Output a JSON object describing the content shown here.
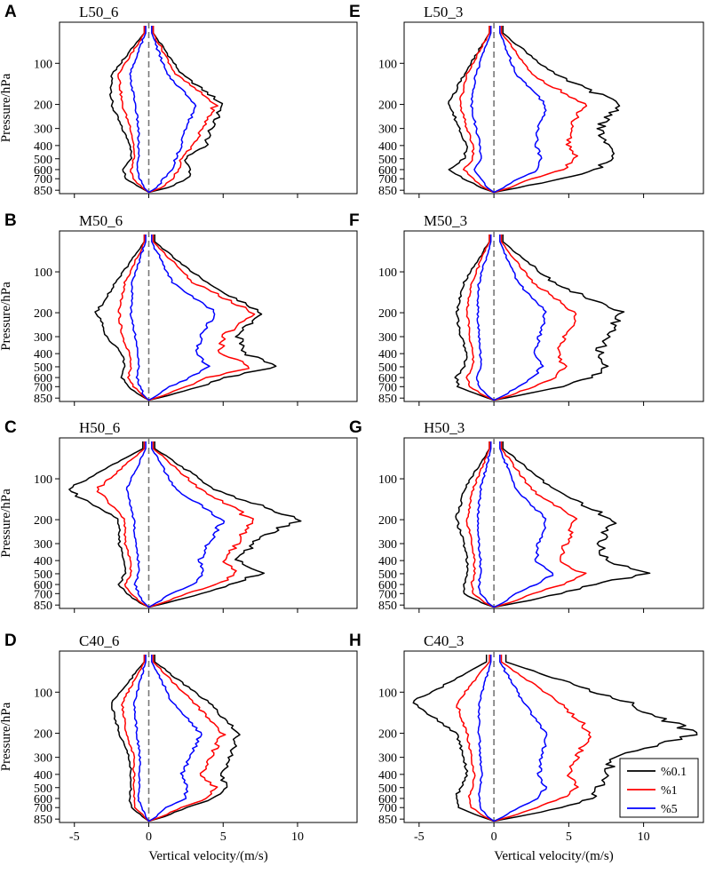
{
  "chart_data": {
    "type": "line",
    "xlabel": "Vertical velocity/(m/s)",
    "ylabel": "Pressure/hPa",
    "xlim": [
      -6,
      14
    ],
    "ylim": [
      900,
      50
    ],
    "xticks": [
      -5,
      0,
      5,
      10
    ],
    "xtick_labels": [
      "-5",
      "0",
      "5",
      "10"
    ],
    "yticks": [
      100,
      200,
      300,
      400,
      500,
      600,
      700,
      850
    ],
    "ytick_labels": [
      "100",
      "200",
      "300",
      "400",
      "500",
      "600",
      "700",
      "850"
    ],
    "zero_line": 0,
    "legend": {
      "placement": "lower-right of panel H",
      "entries": [
        {
          "label": "%0.1",
          "color": "#000000"
        },
        {
          "label": "%1",
          "color": "#ff0000"
        },
        {
          "label": "%5",
          "color": "#0000ff"
        }
      ]
    },
    "panels": [
      {
        "id": "A",
        "label": "A",
        "title": "L50_6",
        "series": [
          {
            "name": "%0.1",
            "color": "#000000",
            "min": [
              -0.3,
              -2.5,
              -2.5,
              -1.8,
              -1.2,
              -1.2,
              -1.7,
              -1.5,
              -0.5,
              0
            ],
            "max": [
              0.3,
              2.2,
              5.0,
              4.2,
              3.8,
              2.4,
              2.8,
              2.6,
              1.2,
              0
            ]
          },
          {
            "name": "%1",
            "color": "#ff0000",
            "min": [
              -0.3,
              -2.0,
              -1.8,
              -1.2,
              -1.0,
              -1.0,
              -1.2,
              -1.1,
              -0.4,
              0
            ],
            "max": [
              0.3,
              1.8,
              4.5,
              3.6,
              3.0,
              2.2,
              2.0,
              1.6,
              0.8,
              0
            ]
          },
          {
            "name": "%5",
            "color": "#0000ff",
            "min": [
              -0.2,
              -1.3,
              -0.9,
              -0.7,
              -0.7,
              -0.7,
              -0.8,
              -0.6,
              -0.3,
              0
            ],
            "max": [
              0.2,
              1.2,
              3.2,
              2.5,
              2.2,
              1.8,
              1.6,
              1.0,
              0.5,
              0
            ]
          }
        ]
      },
      {
        "id": "E",
        "label": "E",
        "title": "L50_3",
        "series": [
          {
            "name": "%0.1",
            "color": "#000000",
            "min": [
              -0.3,
              -2.0,
              -3.0,
              -2.3,
              -1.8,
              -2.0,
              -3.0,
              -2.0,
              -0.8,
              0
            ],
            "max": [
              0.6,
              4.0,
              8.5,
              7.0,
              7.5,
              8.0,
              6.8,
              4.5,
              1.5,
              0
            ]
          },
          {
            "name": "%1",
            "color": "#ff0000",
            "min": [
              -0.3,
              -1.8,
              -2.3,
              -1.8,
              -1.4,
              -1.4,
              -2.0,
              -1.4,
              -0.6,
              0
            ],
            "max": [
              0.5,
              2.5,
              6.0,
              5.0,
              5.0,
              5.6,
              4.5,
              2.5,
              1.0,
              0
            ]
          },
          {
            "name": "%5",
            "color": "#0000ff",
            "min": [
              -0.2,
              -1.2,
              -1.5,
              -1.2,
              -0.9,
              -0.9,
              -1.3,
              -0.9,
              -0.4,
              0
            ],
            "max": [
              0.4,
              1.5,
              3.5,
              3.0,
              2.8,
              3.2,
              3.0,
              1.6,
              0.6,
              0
            ]
          }
        ]
      },
      {
        "id": "B",
        "label": "B",
        "title": "M50_6",
        "series": [
          {
            "name": "%0.1",
            "color": "#000000",
            "min": [
              -0.3,
              -2.2,
              -3.5,
              -2.8,
              -1.8,
              -1.6,
              -1.8,
              -1.4,
              -0.5,
              0
            ],
            "max": [
              0.4,
              3.8,
              7.5,
              6.0,
              6.5,
              9.0,
              5.0,
              3.5,
              1.2,
              0
            ]
          },
          {
            "name": "%1",
            "color": "#ff0000",
            "min": [
              -0.3,
              -1.6,
              -2.0,
              -1.8,
              -1.3,
              -1.2,
              -1.4,
              -1.0,
              -0.4,
              0
            ],
            "max": [
              0.3,
              3.0,
              7.0,
              5.0,
              4.8,
              7.0,
              4.0,
              2.5,
              0.9,
              0
            ]
          },
          {
            "name": "%5",
            "color": "#0000ff",
            "min": [
              -0.2,
              -1.1,
              -1.2,
              -0.9,
              -0.7,
              -0.7,
              -0.8,
              -0.6,
              -0.3,
              0
            ],
            "max": [
              0.2,
              1.6,
              4.5,
              3.5,
              3.2,
              4.0,
              2.8,
              1.4,
              0.5,
              0
            ]
          }
        ]
      },
      {
        "id": "F",
        "label": "F",
        "title": "M50_3",
        "series": [
          {
            "name": "%0.1",
            "color": "#000000",
            "min": [
              -0.3,
              -2.0,
              -2.5,
              -2.2,
              -1.8,
              -2.0,
              -2.5,
              -2.4,
              -0.8,
              0
            ],
            "max": [
              0.6,
              4.0,
              8.5,
              7.5,
              7.0,
              7.5,
              6.5,
              4.5,
              1.5,
              0
            ]
          },
          {
            "name": "%1",
            "color": "#ff0000",
            "min": [
              -0.3,
              -1.5,
              -1.8,
              -1.6,
              -1.4,
              -1.4,
              -1.8,
              -1.6,
              -0.6,
              0
            ],
            "max": [
              0.5,
              2.6,
              5.5,
              4.8,
              4.2,
              4.8,
              4.0,
              2.6,
              1.0,
              0
            ]
          },
          {
            "name": "%5",
            "color": "#0000ff",
            "min": [
              -0.2,
              -1.0,
              -1.1,
              -1.0,
              -0.9,
              -0.9,
              -1.1,
              -1.0,
              -0.4,
              0
            ],
            "max": [
              0.4,
              1.6,
              3.5,
              3.0,
              2.8,
              3.2,
              2.6,
              1.6,
              0.6,
              0
            ]
          }
        ]
      },
      {
        "id": "C",
        "label": "C",
        "title": "H50_6",
        "series": [
          {
            "name": "%0.1",
            "color": "#000000",
            "min": [
              -0.4,
              -5.5,
              -2.0,
              -2.0,
              -1.6,
              -1.6,
              -2.0,
              -1.5,
              -0.6,
              0
            ],
            "max": [
              0.4,
              4.5,
              10.0,
              7.0,
              6.0,
              7.5,
              5.5,
              3.5,
              1.2,
              0
            ]
          },
          {
            "name": "%1",
            "color": "#ff0000",
            "min": [
              -0.3,
              -3.5,
              -1.6,
              -1.6,
              -1.2,
              -1.2,
              -1.6,
              -1.2,
              -0.5,
              0
            ],
            "max": [
              0.3,
              3.5,
              7.0,
              6.0,
              5.0,
              6.0,
              4.5,
              2.5,
              0.9,
              0
            ]
          },
          {
            "name": "%5",
            "color": "#0000ff",
            "min": [
              -0.2,
              -1.5,
              -1.0,
              -0.9,
              -0.7,
              -0.7,
              -0.9,
              -0.7,
              -0.3,
              0
            ],
            "max": [
              0.2,
              1.8,
              5.0,
              4.0,
              3.4,
              3.6,
              3.0,
              1.5,
              0.5,
              0
            ]
          }
        ]
      },
      {
        "id": "G",
        "label": "G",
        "title": "H50_3",
        "series": [
          {
            "name": "%0.1",
            "color": "#000000",
            "min": [
              -0.3,
              -2.0,
              -2.5,
              -2.0,
              -1.8,
              -1.8,
              -2.0,
              -2.0,
              -0.8,
              0
            ],
            "max": [
              0.6,
              4.0,
              8.0,
              7.0,
              7.5,
              10.5,
              6.5,
              4.5,
              1.5,
              0
            ]
          },
          {
            "name": "%1",
            "color": "#ff0000",
            "min": [
              -0.3,
              -1.4,
              -1.8,
              -1.5,
              -1.3,
              -1.3,
              -1.5,
              -1.4,
              -0.6,
              0
            ],
            "max": [
              0.5,
              2.5,
              5.5,
              4.8,
              4.5,
              6.0,
              4.5,
              2.6,
              1.0,
              0
            ]
          },
          {
            "name": "%5",
            "color": "#0000ff",
            "min": [
              -0.2,
              -0.9,
              -1.1,
              -1.0,
              -0.9,
              -0.9,
              -1.0,
              -0.9,
              -0.4,
              0
            ],
            "max": [
              0.4,
              1.5,
              3.5,
              3.0,
              2.8,
              4.0,
              2.8,
              1.5,
              0.6,
              0
            ]
          }
        ]
      },
      {
        "id": "D",
        "label": "D",
        "title": "C40_6",
        "series": [
          {
            "name": "%0.1",
            "color": "#000000",
            "min": [
              -0.3,
              -2.5,
              -2.0,
              -1.3,
              -1.2,
              -1.2,
              -1.3,
              -1.1,
              -0.4,
              0
            ],
            "max": [
              0.4,
              4.0,
              6.0,
              5.5,
              4.8,
              5.2,
              4.4,
              2.5,
              1.0,
              0
            ]
          },
          {
            "name": "%1",
            "color": "#ff0000",
            "min": [
              -0.3,
              -1.8,
              -1.5,
              -1.0,
              -1.0,
              -1.0,
              -1.0,
              -0.9,
              -0.3,
              0
            ],
            "max": [
              0.3,
              3.0,
              5.0,
              4.2,
              3.5,
              4.5,
              3.8,
              2.2,
              0.8,
              0
            ]
          },
          {
            "name": "%5",
            "color": "#0000ff",
            "min": [
              -0.2,
              -1.0,
              -0.8,
              -0.6,
              -0.6,
              -0.6,
              -0.7,
              -0.5,
              -0.2,
              0
            ],
            "max": [
              0.2,
              1.6,
              3.5,
              2.8,
              2.2,
              2.6,
              2.4,
              1.2,
              0.5,
              0
            ]
          }
        ]
      },
      {
        "id": "H",
        "label": "H",
        "title": "C40_3",
        "series": [
          {
            "name": "%0.1",
            "color": "#000000",
            "min": [
              -0.5,
              -5.5,
              -2.5,
              -2.0,
              -1.8,
              -2.2,
              -2.6,
              -2.3,
              -0.8,
              0
            ],
            "max": [
              0.8,
              9.0,
              13.5,
              8.0,
              7.5,
              7.0,
              6.5,
              4.5,
              1.5,
              0
            ]
          },
          {
            "name": "%1",
            "color": "#ff0000",
            "min": [
              -0.3,
              -2.5,
              -1.8,
              -1.5,
              -1.3,
              -1.4,
              -1.7,
              -1.5,
              -0.6,
              0
            ],
            "max": [
              0.5,
              4.5,
              6.5,
              5.5,
              5.0,
              5.5,
              4.5,
              2.8,
              1.0,
              0
            ]
          },
          {
            "name": "%5",
            "color": "#0000ff",
            "min": [
              -0.2,
              -1.0,
              -1.0,
              -0.9,
              -0.8,
              -0.9,
              -1.0,
              -0.9,
              -0.4,
              0
            ],
            "max": [
              0.4,
              2.0,
              3.5,
              3.2,
              3.0,
              3.4,
              3.0,
              1.6,
              0.6,
              0
            ]
          }
        ]
      }
    ],
    "profile_pressure_levels": [
      60,
      120,
      200,
      300,
      400,
      500,
      600,
      700,
      820,
      880
    ]
  }
}
